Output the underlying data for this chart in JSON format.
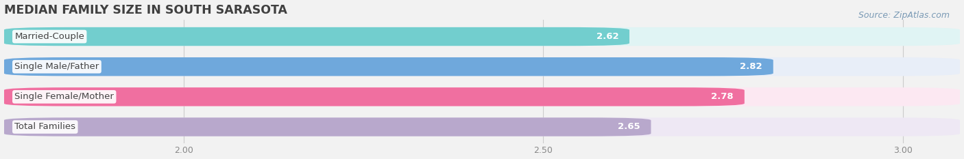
{
  "title": "MEDIAN FAMILY SIZE IN SOUTH SARASOTA",
  "source": "Source: ZipAtlas.com",
  "categories": [
    "Married-Couple",
    "Single Male/Father",
    "Single Female/Mother",
    "Total Families"
  ],
  "values": [
    2.62,
    2.82,
    2.78,
    2.65
  ],
  "bar_colors": [
    "#72cece",
    "#6fa8dc",
    "#f06fa0",
    "#b8a8cc"
  ],
  "bar_bg_colors": [
    "#e0f4f4",
    "#e8eef8",
    "#fce8f2",
    "#eee8f4"
  ],
  "xmin": 1.75,
  "xmax": 3.08,
  "xticks": [
    2.0,
    2.5,
    3.0
  ],
  "label_color": "#555555",
  "title_color": "#404040",
  "value_fontsize": 9.5,
  "label_fontsize": 9.5,
  "title_fontsize": 12.5,
  "source_fontsize": 9,
  "source_color": "#7a9ab5",
  "background_color": "#f2f2f2"
}
